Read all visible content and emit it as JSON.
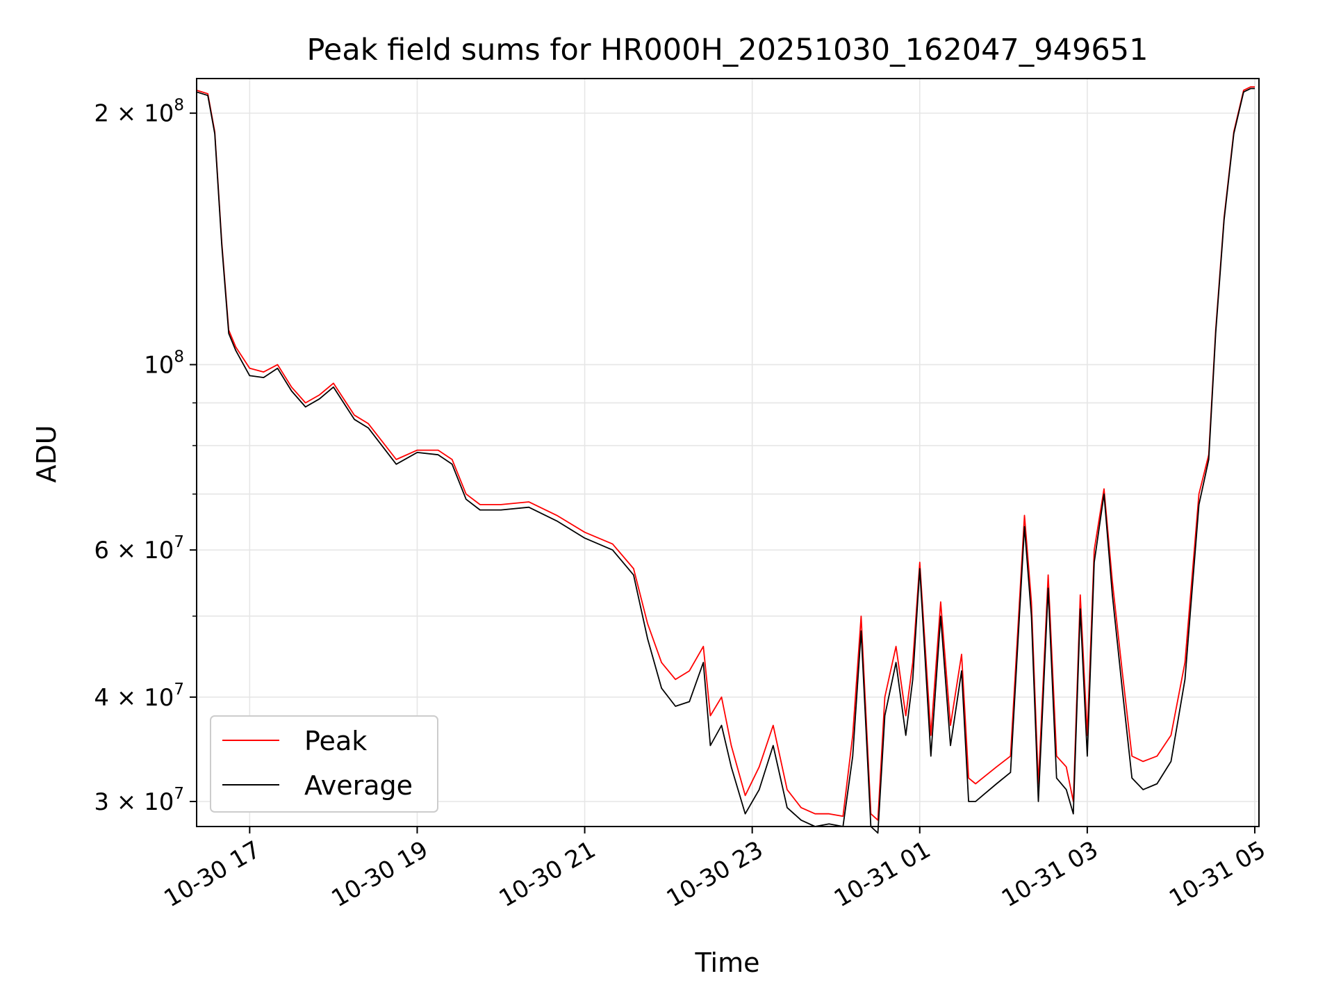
{
  "chart_data": {
    "type": "line",
    "title": "Peak field sums for HR000H_20251030_162047_949651",
    "xlabel": "Time",
    "ylabel": "ADU",
    "yscale": "log",
    "ylim": [
      28000000,
      220000000
    ],
    "xlim": [
      "2025-10-30 16:22",
      "2025-10-31 05:03"
    ],
    "grid": true,
    "legend_position": "lower-left",
    "x_ticks": [
      "10-30 17",
      "10-30 19",
      "10-30 21",
      "10-30 23",
      "10-31 01",
      "10-31 03",
      "10-31 05"
    ],
    "y_ticks": [
      {
        "mantissa": "2 × 10",
        "exp": "8",
        "value": 200000000
      },
      {
        "mantissa": "10",
        "exp": "8",
        "value": 100000000
      },
      {
        "mantissa": "6 × 10",
        "exp": "7",
        "value": 60000000
      },
      {
        "mantissa": "4 × 10",
        "exp": "7",
        "value": 40000000
      },
      {
        "mantissa": "3 × 10",
        "exp": "7",
        "value": 30000000
      }
    ],
    "series": [
      {
        "name": "Peak",
        "color": "#ff0000"
      },
      {
        "name": "Average",
        "color": "#000000"
      }
    ],
    "x": [
      "2025-10-30 16:22",
      "2025-10-30 16:30",
      "2025-10-30 16:35",
      "2025-10-30 16:40",
      "2025-10-30 16:45",
      "2025-10-30 16:50",
      "2025-10-30 17:00",
      "2025-10-30 17:10",
      "2025-10-30 17:20",
      "2025-10-30 17:30",
      "2025-10-30 17:40",
      "2025-10-30 17:50",
      "2025-10-30 18:00",
      "2025-10-30 18:15",
      "2025-10-30 18:25",
      "2025-10-30 18:45",
      "2025-10-30 19:00",
      "2025-10-30 19:15",
      "2025-10-30 19:25",
      "2025-10-30 19:35",
      "2025-10-30 19:45",
      "2025-10-30 20:00",
      "2025-10-30 20:20",
      "2025-10-30 20:40",
      "2025-10-30 21:00",
      "2025-10-30 21:20",
      "2025-10-30 21:35",
      "2025-10-30 21:45",
      "2025-10-30 21:55",
      "2025-10-30 22:05",
      "2025-10-30 22:15",
      "2025-10-30 22:25",
      "2025-10-30 22:30",
      "2025-10-30 22:38",
      "2025-10-30 22:45",
      "2025-10-30 22:55",
      "2025-10-30 23:05",
      "2025-10-30 23:15",
      "2025-10-30 23:25",
      "2025-10-30 23:35",
      "2025-10-30 23:45",
      "2025-10-30 23:55",
      "2025-10-31 00:05",
      "2025-10-31 00:12",
      "2025-10-31 00:18",
      "2025-10-31 00:25",
      "2025-10-31 00:30",
      "2025-10-31 00:35",
      "2025-10-31 00:43",
      "2025-10-31 00:50",
      "2025-10-31 00:55",
      "2025-10-31 01:00",
      "2025-10-31 01:08",
      "2025-10-31 01:15",
      "2025-10-31 01:22",
      "2025-10-31 01:30",
      "2025-10-31 01:35",
      "2025-10-31 01:40",
      "2025-10-31 01:45",
      "2025-10-31 01:55",
      "2025-10-31 02:05",
      "2025-10-31 02:15",
      "2025-10-31 02:20",
      "2025-10-31 02:25",
      "2025-10-31 02:32",
      "2025-10-31 02:38",
      "2025-10-31 02:45",
      "2025-10-31 02:50",
      "2025-10-31 02:55",
      "2025-10-31 03:00",
      "2025-10-31 03:05",
      "2025-10-31 03:12",
      "2025-10-31 03:18",
      "2025-10-31 03:25",
      "2025-10-31 03:32",
      "2025-10-31 03:40",
      "2025-10-31 03:50",
      "2025-10-31 04:00",
      "2025-10-31 04:10",
      "2025-10-31 04:20",
      "2025-10-31 04:27",
      "2025-10-31 04:32",
      "2025-10-31 04:38",
      "2025-10-31 04:45",
      "2025-10-31 04:52",
      "2025-10-31 04:57",
      "2025-10-31 05:00"
    ],
    "peak": [
      213000000,
      211000000,
      190000000,
      140000000,
      110000000,
      105000000,
      99000000,
      98000000,
      100000000,
      94000000,
      90000000,
      92000000,
      95000000,
      87000000,
      85000000,
      77000000,
      79000000,
      79000000,
      77000000,
      70000000,
      68000000,
      68000000,
      68500000,
      66000000,
      63000000,
      61000000,
      57000000,
      49000000,
      44000000,
      42000000,
      43000000,
      46000000,
      38000000,
      40000000,
      35000000,
      30500000,
      33000000,
      37000000,
      31000000,
      29500000,
      29000000,
      29000000,
      28800000,
      36000000,
      50000000,
      29000000,
      28500000,
      40000000,
      46000000,
      38000000,
      44000000,
      58000000,
      36000000,
      52000000,
      37000000,
      45000000,
      32000000,
      31500000,
      32000000,
      33000000,
      34000000,
      66000000,
      52000000,
      31500000,
      56000000,
      34000000,
      33000000,
      30000000,
      53000000,
      36000000,
      60000000,
      71000000,
      55000000,
      43000000,
      34000000,
      33500000,
      34000000,
      36000000,
      44000000,
      70000000,
      78000000,
      110000000,
      150000000,
      190000000,
      213000000,
      215000000,
      215000000
    ],
    "average": [
      212000000,
      210000000,
      189000000,
      139000000,
      109000000,
      104000000,
      97000000,
      96500000,
      99000000,
      93000000,
      89000000,
      91000000,
      94000000,
      86000000,
      84000000,
      76000000,
      78500000,
      78000000,
      76000000,
      69000000,
      67000000,
      67000000,
      67500000,
      65000000,
      62000000,
      60000000,
      56000000,
      47000000,
      41000000,
      39000000,
      39500000,
      44000000,
      35000000,
      37000000,
      33000000,
      29000000,
      31000000,
      35000000,
      29500000,
      28500000,
      28000000,
      28200000,
      28000000,
      34000000,
      48000000,
      28000000,
      27500000,
      38000000,
      44000000,
      36000000,
      42000000,
      57000000,
      34000000,
      50000000,
      35000000,
      43000000,
      30000000,
      30000000,
      30500000,
      31500000,
      32500000,
      64000000,
      50000000,
      30000000,
      54000000,
      32000000,
      31000000,
      29000000,
      51000000,
      34000000,
      58000000,
      70000000,
      53000000,
      41000000,
      32000000,
      31000000,
      31500000,
      33500000,
      42000000,
      68000000,
      77000000,
      109000000,
      149000000,
      189000000,
      212000000,
      214000000,
      214000000
    ]
  }
}
